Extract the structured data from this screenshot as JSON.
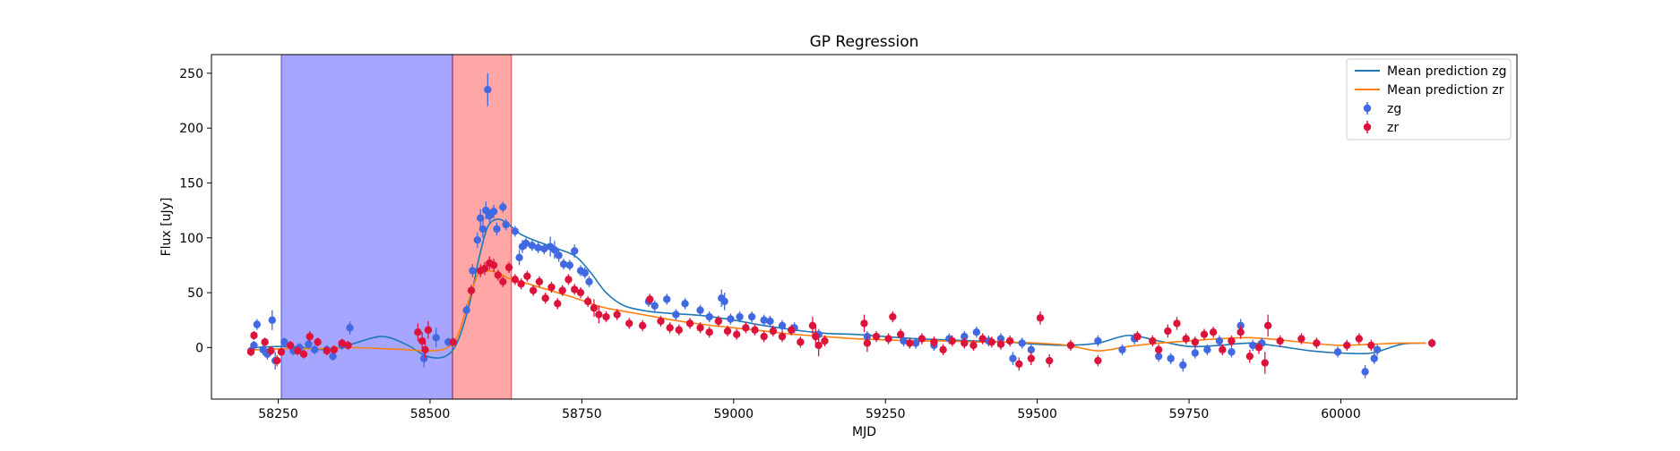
{
  "chart_data": {
    "type": "scatter",
    "title": "GP Regression",
    "xlabel": "MJD",
    "ylabel": "Flux [uJy]",
    "xlim": [
      58140,
      60290
    ],
    "ylim": [
      -47,
      267
    ],
    "xticks": [
      58250,
      58500,
      58750,
      59000,
      59250,
      59500,
      59750,
      60000
    ],
    "yticks": [
      0,
      50,
      100,
      150,
      200,
      250
    ],
    "grid": false,
    "legend_position": "top-right",
    "colors": {
      "zg_points": "#4169e1",
      "zr_points": "#dc143c",
      "zg_line": "#1f77b4",
      "zr_line": "#ff7f0e",
      "span_blue": "#0000ff",
      "span_red": "#ff0000"
    },
    "shaded_regions": [
      {
        "x0": 58255,
        "x1": 58537,
        "color": "blue"
      },
      {
        "x0": 58537,
        "x1": 58634,
        "color": "red"
      }
    ],
    "legend": [
      {
        "label": "Mean prediction zg",
        "kind": "line",
        "series": "zg"
      },
      {
        "label": "Mean prediction zr",
        "kind": "line",
        "series": "zr"
      },
      {
        "label": "zg",
        "kind": "errorbar",
        "series": "zg"
      },
      {
        "label": "zr",
        "kind": "errorbar",
        "series": "zr"
      }
    ],
    "mean_prediction": [
      {
        "series": "zg",
        "x": [
          58210,
          58270,
          58330,
          58370,
          58420,
          58460,
          58495,
          58525,
          58545,
          58565,
          58580,
          58595,
          58612,
          58630,
          58650,
          58680,
          58710,
          58740,
          58765,
          58790,
          58820,
          58860,
          58900,
          58950,
          59000,
          59050,
          59100,
          59150,
          59200,
          59250,
          59300,
          59350,
          59400,
          59450,
          59500,
          59550,
          59600,
          59650,
          59700,
          59750,
          59800,
          59850,
          59900,
          59950,
          60000,
          60050,
          60100,
          60140
        ],
        "y": [
          0,
          1,
          -2,
          3,
          10,
          3,
          -8,
          -8,
          5,
          40,
          80,
          110,
          117,
          112,
          103,
          96,
          90,
          83,
          68,
          50,
          38,
          33,
          31,
          29,
          25,
          20,
          16,
          13,
          12,
          10,
          8,
          7,
          6,
          5,
          3,
          2,
          4,
          11,
          6,
          1,
          2,
          4,
          1,
          -3,
          -5,
          -5,
          3,
          4
        ]
      },
      {
        "series": "zr",
        "x": [
          58210,
          58270,
          58330,
          58370,
          58420,
          58460,
          58495,
          58525,
          58545,
          58565,
          58580,
          58595,
          58612,
          58630,
          58650,
          58680,
          58710,
          58740,
          58765,
          58790,
          58820,
          58860,
          58900,
          58950,
          59000,
          59050,
          59100,
          59150,
          59200,
          59250,
          59300,
          59350,
          59400,
          59450,
          59500,
          59550,
          59600,
          59650,
          59700,
          59750,
          59800,
          59850,
          59900,
          59950,
          60000,
          60050,
          60100,
          60140
        ],
        "y": [
          -2,
          -1,
          -1,
          0,
          -1,
          -2,
          -3,
          -1,
          10,
          45,
          68,
          70,
          68,
          63,
          60,
          55,
          50,
          45,
          40,
          36,
          33,
          29,
          25,
          21,
          18,
          15,
          12,
          10,
          8,
          7,
          6,
          6,
          5,
          5,
          4,
          2,
          -3,
          1,
          4,
          6,
          8,
          9,
          7,
          4,
          2,
          3,
          4,
          4
        ]
      }
    ],
    "observations": [
      {
        "series": "zg",
        "points": [
          [
            58205,
            -3,
            4
          ],
          [
            58210,
            2,
            4
          ],
          [
            58215,
            21,
            5
          ],
          [
            58225,
            -2,
            5
          ],
          [
            58232,
            -6,
            5
          ],
          [
            58240,
            25,
            9
          ],
          [
            58245,
            -12,
            8
          ],
          [
            58260,
            5,
            4
          ],
          [
            58275,
            -3,
            4
          ],
          [
            58285,
            0,
            4
          ],
          [
            58300,
            3,
            4
          ],
          [
            58310,
            -2,
            4
          ],
          [
            58330,
            -2,
            4
          ],
          [
            58340,
            -8,
            4
          ],
          [
            58355,
            2,
            4
          ],
          [
            58368,
            18,
            6
          ],
          [
            58490,
            -10,
            8
          ],
          [
            58510,
            9,
            9
          ],
          [
            58530,
            5,
            4
          ],
          [
            58560,
            34,
            5
          ],
          [
            58570,
            70,
            6
          ],
          [
            58578,
            98,
            7
          ],
          [
            58583,
            118,
            8
          ],
          [
            58587,
            108,
            8
          ],
          [
            58592,
            125,
            8
          ],
          [
            58595,
            235,
            15
          ],
          [
            58598,
            120,
            6
          ],
          [
            58605,
            124,
            6
          ],
          [
            58610,
            108,
            6
          ],
          [
            58620,
            128,
            5
          ],
          [
            58625,
            112,
            5
          ],
          [
            58640,
            106,
            5
          ],
          [
            58647,
            82,
            7
          ],
          [
            58652,
            92,
            6
          ],
          [
            58658,
            95,
            5
          ],
          [
            58668,
            93,
            5
          ],
          [
            58678,
            91,
            5
          ],
          [
            58688,
            90,
            5
          ],
          [
            58698,
            92,
            9
          ],
          [
            58705,
            89,
            8
          ],
          [
            58712,
            84,
            6
          ],
          [
            58720,
            76,
            5
          ],
          [
            58730,
            75,
            5
          ],
          [
            58738,
            88,
            6
          ],
          [
            58748,
            70,
            5
          ],
          [
            58755,
            68,
            5
          ],
          [
            58762,
            60,
            5
          ],
          [
            58860,
            42,
            5
          ],
          [
            58870,
            38,
            5
          ],
          [
            58890,
            44,
            5
          ],
          [
            58905,
            30,
            5
          ],
          [
            58920,
            40,
            5
          ],
          [
            58945,
            34,
            5
          ],
          [
            58960,
            28,
            5
          ],
          [
            58980,
            45,
            8
          ],
          [
            58985,
            42,
            8
          ],
          [
            58995,
            26,
            5
          ],
          [
            59010,
            28,
            5
          ],
          [
            59030,
            28,
            5
          ],
          [
            59050,
            25,
            5
          ],
          [
            59060,
            24,
            5
          ],
          [
            59080,
            20,
            5
          ],
          [
            59100,
            18,
            5
          ],
          [
            59140,
            12,
            5
          ],
          [
            59220,
            10,
            5
          ],
          [
            59280,
            6,
            5
          ],
          [
            59300,
            4,
            5
          ],
          [
            59330,
            2,
            5
          ],
          [
            59355,
            8,
            5
          ],
          [
            59380,
            10,
            5
          ],
          [
            59400,
            14,
            5
          ],
          [
            59420,
            6,
            5
          ],
          [
            59440,
            8,
            5
          ],
          [
            59460,
            -10,
            6
          ],
          [
            59475,
            4,
            5
          ],
          [
            59490,
            -2,
            5
          ],
          [
            59600,
            6,
            5
          ],
          [
            59640,
            -2,
            5
          ],
          [
            59660,
            8,
            5
          ],
          [
            59700,
            -8,
            5
          ],
          [
            59720,
            -10,
            5
          ],
          [
            59740,
            -16,
            6
          ],
          [
            59760,
            -5,
            5
          ],
          [
            59780,
            -2,
            5
          ],
          [
            59800,
            6,
            5
          ],
          [
            59820,
            -4,
            5
          ],
          [
            59835,
            20,
            6
          ],
          [
            59855,
            2,
            5
          ],
          [
            59870,
            4,
            5
          ],
          [
            59995,
            -4,
            5
          ],
          [
            60040,
            -22,
            6
          ],
          [
            60055,
            -10,
            5
          ],
          [
            60060,
            -2,
            5
          ],
          [
            60150,
            4,
            4
          ]
        ]
      },
      {
        "series": "zr",
        "points": [
          [
            58205,
            -4,
            4
          ],
          [
            58210,
            11,
            4
          ],
          [
            58228,
            5,
            4
          ],
          [
            58238,
            -3,
            4
          ],
          [
            58248,
            -12,
            5
          ],
          [
            58255,
            -4,
            4
          ],
          [
            58270,
            2,
            4
          ],
          [
            58282,
            -3,
            4
          ],
          [
            58292,
            -6,
            4
          ],
          [
            58302,
            10,
            5
          ],
          [
            58315,
            5,
            4
          ],
          [
            58330,
            -3,
            4
          ],
          [
            58342,
            -2,
            4
          ],
          [
            58355,
            4,
            4
          ],
          [
            58365,
            2,
            4
          ],
          [
            58480,
            14,
            8
          ],
          [
            58487,
            6,
            8
          ],
          [
            58492,
            -2,
            8
          ],
          [
            58497,
            16,
            8
          ],
          [
            58538,
            5,
            4
          ],
          [
            58568,
            52,
            5
          ],
          [
            58583,
            70,
            6
          ],
          [
            58590,
            72,
            6
          ],
          [
            58598,
            77,
            6
          ],
          [
            58605,
            75,
            6
          ],
          [
            58612,
            66,
            5
          ],
          [
            58620,
            60,
            5
          ],
          [
            58630,
            73,
            5
          ],
          [
            58640,
            62,
            5
          ],
          [
            58650,
            58,
            5
          ],
          [
            58660,
            65,
            5
          ],
          [
            58670,
            52,
            5
          ],
          [
            58680,
            60,
            5
          ],
          [
            58690,
            45,
            5
          ],
          [
            58700,
            55,
            5
          ],
          [
            58710,
            40,
            5
          ],
          [
            58718,
            52,
            5
          ],
          [
            58728,
            62,
            5
          ],
          [
            58738,
            53,
            5
          ],
          [
            58748,
            50,
            5
          ],
          [
            58760,
            42,
            5
          ],
          [
            58770,
            36,
            8
          ],
          [
            58778,
            30,
            8
          ],
          [
            58790,
            28,
            5
          ],
          [
            58808,
            30,
            5
          ],
          [
            58828,
            22,
            5
          ],
          [
            58850,
            20,
            5
          ],
          [
            58862,
            44,
            5
          ],
          [
            58880,
            24,
            5
          ],
          [
            58895,
            18,
            5
          ],
          [
            58910,
            16,
            5
          ],
          [
            58928,
            22,
            5
          ],
          [
            58945,
            18,
            5
          ],
          [
            58960,
            14,
            5
          ],
          [
            58975,
            24,
            5
          ],
          [
            58990,
            15,
            5
          ],
          [
            59005,
            12,
            5
          ],
          [
            59020,
            18,
            5
          ],
          [
            59035,
            16,
            5
          ],
          [
            59050,
            10,
            5
          ],
          [
            59065,
            15,
            5
          ],
          [
            59080,
            10,
            5
          ],
          [
            59095,
            16,
            5
          ],
          [
            59110,
            5,
            5
          ],
          [
            59130,
            20,
            8
          ],
          [
            59135,
            10,
            10
          ],
          [
            59140,
            2,
            10
          ],
          [
            59150,
            6,
            5
          ],
          [
            59215,
            22,
            8
          ],
          [
            59220,
            4,
            8
          ],
          [
            59235,
            10,
            5
          ],
          [
            59255,
            8,
            5
          ],
          [
            59262,
            28,
            5
          ],
          [
            59275,
            12,
            5
          ],
          [
            59290,
            4,
            5
          ],
          [
            59310,
            8,
            5
          ],
          [
            59330,
            5,
            5
          ],
          [
            59345,
            -2,
            5
          ],
          [
            59360,
            6,
            5
          ],
          [
            59380,
            4,
            5
          ],
          [
            59395,
            2,
            5
          ],
          [
            59410,
            8,
            5
          ],
          [
            59425,
            5,
            5
          ],
          [
            59440,
            3,
            5
          ],
          [
            59455,
            6,
            5
          ],
          [
            59470,
            -15,
            6
          ],
          [
            59490,
            -10,
            6
          ],
          [
            59505,
            27,
            6
          ],
          [
            59520,
            -12,
            6
          ],
          [
            59555,
            2,
            5
          ],
          [
            59600,
            -12,
            5
          ],
          [
            59665,
            10,
            5
          ],
          [
            59690,
            6,
            5
          ],
          [
            59700,
            -2,
            5
          ],
          [
            59715,
            15,
            6
          ],
          [
            59730,
            22,
            6
          ],
          [
            59745,
            8,
            5
          ],
          [
            59760,
            5,
            5
          ],
          [
            59775,
            12,
            5
          ],
          [
            59790,
            14,
            5
          ],
          [
            59805,
            -2,
            5
          ],
          [
            59820,
            6,
            5
          ],
          [
            59835,
            14,
            6
          ],
          [
            59850,
            -8,
            6
          ],
          [
            59865,
            0,
            6
          ],
          [
            59875,
            -14,
            10
          ],
          [
            59880,
            20,
            10
          ],
          [
            59900,
            6,
            5
          ],
          [
            59935,
            8,
            5
          ],
          [
            59960,
            4,
            5
          ],
          [
            60010,
            2,
            5
          ],
          [
            60030,
            8,
            5
          ],
          [
            60050,
            2,
            5
          ],
          [
            60150,
            4,
            4
          ]
        ]
      }
    ]
  }
}
